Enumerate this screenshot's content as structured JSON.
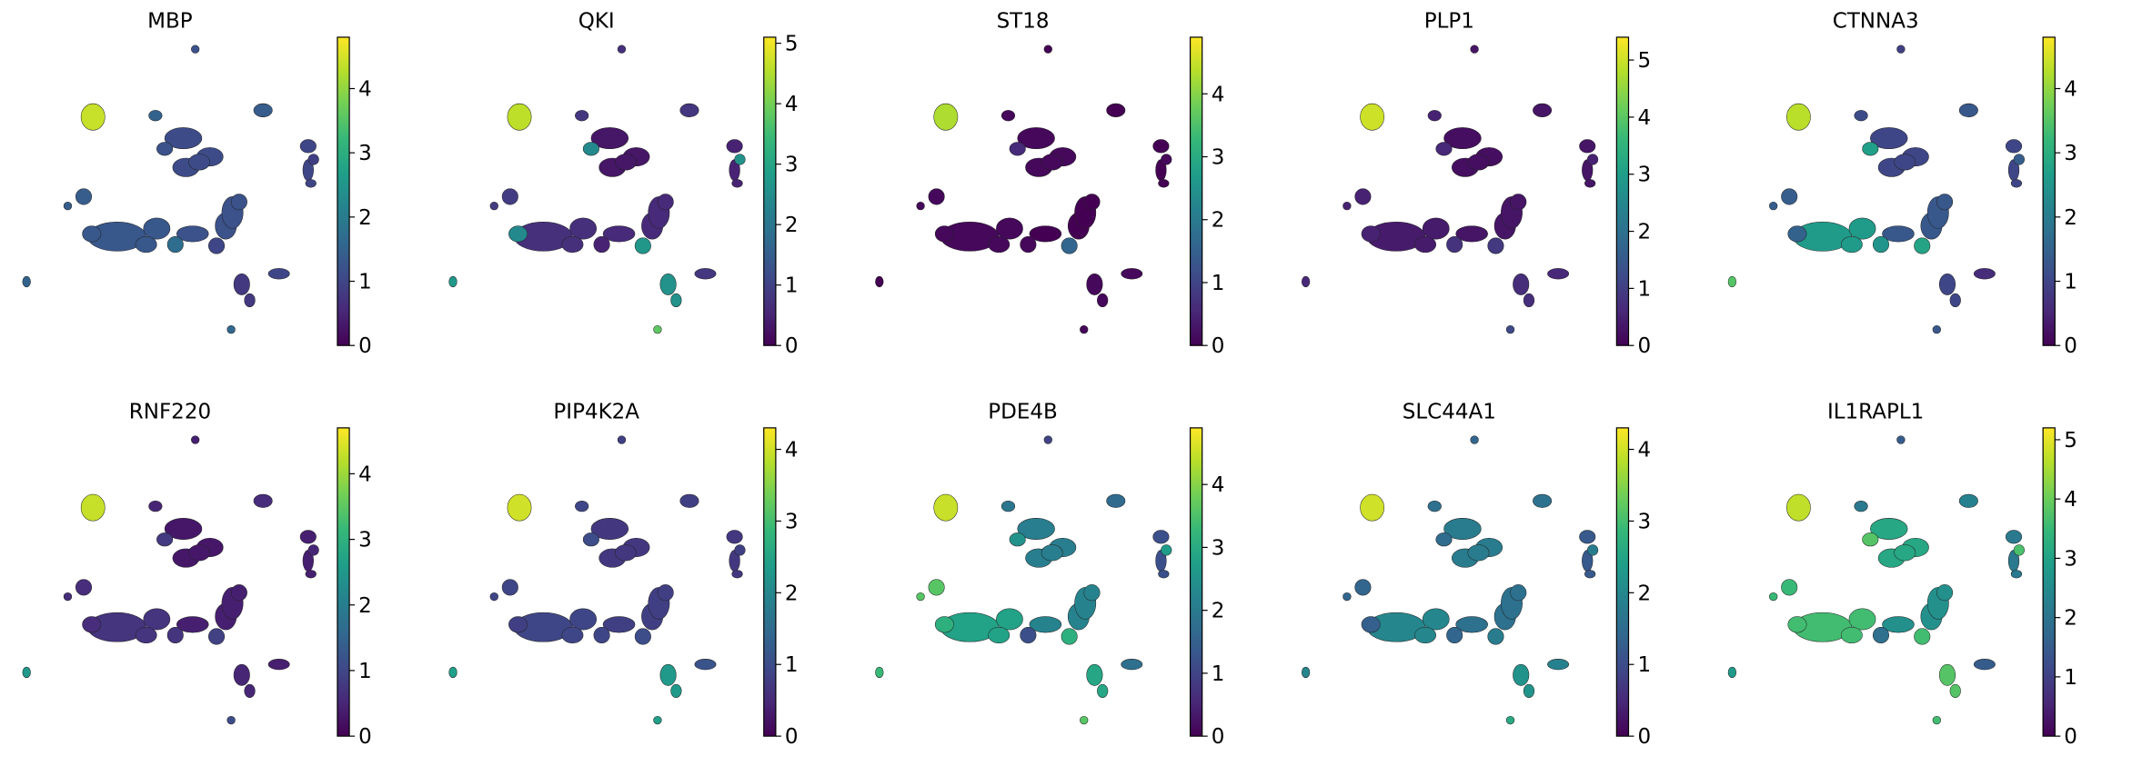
{
  "chart_data": {
    "type": "scatter",
    "description_free": true,
    "colormap": "viridis",
    "colormap_stops": [
      "#440154",
      "#482878",
      "#3e4a89",
      "#31688e",
      "#26828e",
      "#1f9e89",
      "#35b779",
      "#6ece58",
      "#b5de2b",
      "#fde725"
    ],
    "axes_visible": false,
    "clusters": [
      {
        "id": "c1",
        "x": 0.42,
        "y": 0.22
      },
      {
        "id": "c2",
        "x": 0.92,
        "y": 0.78
      },
      {
        "id": "c3",
        "x": 0.68,
        "y": 0.6
      },
      {
        "id": "c4",
        "x": 0.26,
        "y": 0.49
      },
      {
        "id": "c5",
        "x": 0.78,
        "y": 0.8
      },
      {
        "id": "c6",
        "x": 0.74,
        "y": 0.92
      },
      {
        "id": "c7",
        "x": 0.86,
        "y": 0.74
      },
      {
        "id": "c8",
        "x": 0.46,
        "y": 0.77
      },
      {
        "id": "c9",
        "x": 0.5,
        "y": 0.52
      },
      {
        "id": "c10",
        "x": 0.13,
        "y": 0.39
      },
      {
        "id": "c11",
        "x": 0.13,
        "y": 0.47
      },
      {
        "id": "c12",
        "x": 0.1,
        "y": 0.4
      },
      {
        "id": "c13",
        "x": 0.02,
        "y": 0.2
      },
      {
        "id": "c14",
        "x": 0.08,
        "y": 0.92
      },
      {
        "id": "c15",
        "x": 0.98,
        "y": 0.57
      },
      {
        "id": "c16",
        "x": 0.96,
        "y": 0.64
      },
      {
        "id": "c17",
        "x": 0.81,
        "y": 0.87
      },
      {
        "id": "c18",
        "x": 0.8,
        "y": 0.04
      }
    ],
    "panels": [
      {
        "gene": "MBP",
        "vmax_ticks": [
          0,
          1,
          2,
          3,
          4
        ],
        "vmax": 4.8,
        "levels": {
          "c1": 4.4,
          "c2": 1.2,
          "c3": 1.5,
          "c4": 1.1,
          "c5": 1.4,
          "c6": 1.0,
          "c7": 1.4,
          "c8": 1.3,
          "c9": 1.2,
          "c10": 1.5,
          "c11": 0.8,
          "c12": 1.0,
          "c13": 1.6,
          "c14": 1.7,
          "c15": 1.0,
          "c16": 1.2,
          "c17": 1.3,
          "c18": 0.9
        }
      },
      {
        "gene": "QKI",
        "vmax_ticks": [
          0,
          1,
          2,
          3,
          4,
          5
        ],
        "vmax": 5.1,
        "levels": {
          "c1": 4.6,
          "c2": 0.7,
          "c3": 0.8,
          "c4": 0.3,
          "c5": 0.8,
          "c6": 0.5,
          "c7": 0.9,
          "c8": 0.7,
          "c9": 0.6,
          "c10": 2.7,
          "c11": 2.6,
          "c12": 0.8,
          "c13": 3.8,
          "c14": 0.5,
          "c15": 2.7,
          "c16": 2.4,
          "c17": 2.4,
          "c18": 2.6
        }
      },
      {
        "gene": "ST18",
        "vmax_ticks": [
          0,
          1,
          2,
          3,
          4
        ],
        "vmax": 4.9,
        "levels": {
          "c1": 4.3,
          "c2": 0.0,
          "c3": 0.1,
          "c4": 0.1,
          "c5": 0.0,
          "c6": 0.0,
          "c7": 0.1,
          "c8": 0.1,
          "c9": 0.0,
          "c10": 0.0,
          "c11": 0.1,
          "c12": 0.1,
          "c13": 0.1,
          "c14": 0.1,
          "c15": 1.6,
          "c16": 0.6,
          "c17": 0.1,
          "c18": 0.1
        }
      },
      {
        "gene": "PLP1",
        "vmax_ticks": [
          0,
          1,
          2,
          3,
          4,
          5
        ],
        "vmax": 5.4,
        "levels": {
          "c1": 5.0,
          "c2": 0.3,
          "c3": 0.5,
          "c4": 0.2,
          "c5": 0.3,
          "c6": 0.3,
          "c7": 0.5,
          "c8": 0.4,
          "c9": 0.3,
          "c10": 0.6,
          "c11": 0.7,
          "c12": 0.6,
          "c13": 1.2,
          "c14": 0.8,
          "c15": 0.9,
          "c16": 0.6,
          "c17": 0.5,
          "c18": 0.5
        }
      },
      {
        "gene": "CTNNA3",
        "vmax_ticks": [
          0,
          1,
          2,
          3,
          4
        ],
        "vmax": 4.8,
        "levels": {
          "c1": 4.3,
          "c2": 0.9,
          "c3": 1.1,
          "c4": 1.0,
          "c5": 1.3,
          "c6": 1.0,
          "c7": 1.4,
          "c8": 2.6,
          "c9": 1.3,
          "c10": 3.5,
          "c11": 1.0,
          "c12": 0.6,
          "c13": 1.3,
          "c14": 2.5,
          "c15": 2.8,
          "c16": 2.7,
          "c17": 1.5,
          "c18": 1.4
        }
      },
      {
        "gene": "RNF220",
        "vmax_ticks": [
          0,
          1,
          2,
          3,
          4
        ],
        "vmax": 4.7,
        "levels": {
          "c1": 4.3,
          "c2": 0.4,
          "c3": 0.5,
          "c4": 0.3,
          "c5": 0.6,
          "c6": 0.4,
          "c7": 0.6,
          "c8": 0.7,
          "c9": 0.4,
          "c10": 2.5,
          "c11": 0.5,
          "c12": 0.4,
          "c13": 1.1,
          "c14": 0.7,
          "c15": 0.9,
          "c16": 0.8,
          "c17": 0.6,
          "c18": 0.5
        }
      },
      {
        "gene": "PIP4K2A",
        "vmax_ticks": [
          0,
          1,
          2,
          3,
          4
        ],
        "vmax": 4.3,
        "levels": {
          "c1": 4.0,
          "c2": 0.8,
          "c3": 0.9,
          "c4": 0.7,
          "c5": 0.8,
          "c6": 0.7,
          "c7": 0.9,
          "c8": 0.9,
          "c9": 0.8,
          "c10": 2.4,
          "c11": 2.3,
          "c12": 1.1,
          "c13": 2.4,
          "c14": 0.9,
          "c15": 1.0,
          "c16": 1.0,
          "c17": 0.8,
          "c18": 0.8
        }
      },
      {
        "gene": "PDE4B",
        "vmax_ticks": [
          0,
          1,
          2,
          3,
          4
        ],
        "vmax": 4.9,
        "levels": {
          "c1": 4.5,
          "c2": 1.0,
          "c3": 1.9,
          "c4": 2.1,
          "c5": 1.7,
          "c6": 1.2,
          "c7": 3.6,
          "c8": 2.8,
          "c9": 2.2,
          "c10": 3.3,
          "c11": 2.9,
          "c12": 1.8,
          "c13": 3.6,
          "c14": 1.2,
          "c15": 3.1,
          "c16": 2.5,
          "c17": 3.1,
          "c18": 2.7
        }
      },
      {
        "gene": "SLC44A1",
        "vmax_ticks": [
          0,
          1,
          2,
          3,
          4
        ],
        "vmax": 4.3,
        "levels": {
          "c1": 4.0,
          "c2": 1.4,
          "c3": 1.6,
          "c4": 1.8,
          "c5": 1.6,
          "c6": 1.2,
          "c7": 1.4,
          "c8": 2.0,
          "c9": 1.6,
          "c10": 2.0,
          "c11": 2.2,
          "c12": 1.9,
          "c13": 2.6,
          "c14": 1.4,
          "c15": 1.8,
          "c16": 1.5,
          "c17": 1.3,
          "c18": 1.8
        }
      },
      {
        "gene": "IL1RAPL1",
        "vmax_ticks": [
          0,
          1,
          2,
          3,
          4,
          5
        ],
        "vmax": 5.2,
        "levels": {
          "c1": 4.7,
          "c2": 1.5,
          "c3": 2.1,
          "c4": 3.1,
          "c5": 2.3,
          "c6": 2.1,
          "c7": 3.5,
          "c8": 3.6,
          "c9": 2.6,
          "c10": 2.8,
          "c11": 3.8,
          "c12": 1.5,
          "c13": 3.6,
          "c14": 1.9,
          "c15": 3.6,
          "c16": 3.8,
          "c17": 3.6,
          "c18": 3.7
        }
      }
    ]
  }
}
